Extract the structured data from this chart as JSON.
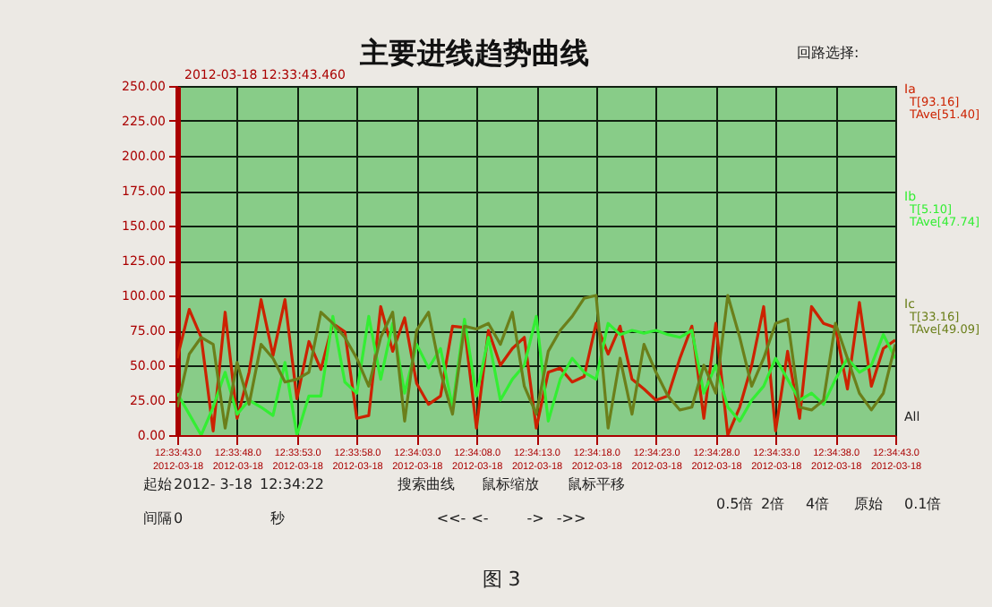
{
  "chart_data": {
    "type": "line",
    "title": "主要进线趋势曲线",
    "x": [
      "2012-03-18T12:33:43",
      "2012-03-18T12:33:44",
      "2012-03-18T12:33:45",
      "2012-03-18T12:33:46",
      "2012-03-18T12:33:47",
      "2012-03-18T12:33:48",
      "2012-03-18T12:33:49",
      "2012-03-18T12:33:50",
      "2012-03-18T12:33:51",
      "2012-03-18T12:33:52",
      "2012-03-18T12:33:53",
      "2012-03-18T12:33:54",
      "2012-03-18T12:33:55",
      "2012-03-18T12:33:56",
      "2012-03-18T12:33:57",
      "2012-03-18T12:33:58",
      "2012-03-18T12:33:59",
      "2012-03-18T12:34:00",
      "2012-03-18T12:34:01",
      "2012-03-18T12:34:02",
      "2012-03-18T12:34:03",
      "2012-03-18T12:34:04",
      "2012-03-18T12:34:05",
      "2012-03-18T12:34:06",
      "2012-03-18T12:34:07",
      "2012-03-18T12:34:08",
      "2012-03-18T12:34:09",
      "2012-03-18T12:34:10",
      "2012-03-18T12:34:11",
      "2012-03-18T12:34:12",
      "2012-03-18T12:34:13",
      "2012-03-18T12:34:14",
      "2012-03-18T12:34:15",
      "2012-03-18T12:34:16",
      "2012-03-18T12:34:17",
      "2012-03-18T12:34:18",
      "2012-03-18T12:34:19",
      "2012-03-18T12:34:20",
      "2012-03-18T12:34:21",
      "2012-03-18T12:34:22",
      "2012-03-18T12:34:23",
      "2012-03-18T12:34:24",
      "2012-03-18T12:34:25",
      "2012-03-18T12:34:26",
      "2012-03-18T12:34:27",
      "2012-03-18T12:34:28",
      "2012-03-18T12:34:29",
      "2012-03-18T12:34:30",
      "2012-03-18T12:34:31",
      "2012-03-18T12:34:32",
      "2012-03-18T12:34:33",
      "2012-03-18T12:34:34",
      "2012-03-18T12:34:35",
      "2012-03-18T12:34:36",
      "2012-03-18T12:34:37",
      "2012-03-18T12:34:38",
      "2012-03-18T12:34:39",
      "2012-03-18T12:34:40",
      "2012-03-18T12:34:41",
      "2012-03-18T12:34:42",
      "2012-03-18T12:34:43"
    ],
    "series": [
      {
        "name": "Ia",
        "color": "#cc2200",
        "values": [
          55,
          90,
          70,
          3,
          88,
          12,
          45,
          97,
          57,
          97,
          26,
          67,
          47,
          80,
          74,
          12,
          14,
          92,
          60,
          84,
          37,
          22,
          28,
          78,
          77,
          5,
          75,
          50,
          62,
          70,
          5,
          45,
          48,
          38,
          42,
          80,
          58,
          78,
          40,
          33,
          25,
          28,
          55,
          78,
          12,
          80,
          0,
          20,
          50,
          92,
          3,
          60,
          12,
          92,
          80,
          77,
          33,
          95,
          35,
          62,
          68
        ]
      },
      {
        "name": "Ib",
        "color": "#33ee33",
        "values": [
          30,
          15,
          0,
          20,
          45,
          15,
          25,
          20,
          14,
          52,
          0,
          28,
          28,
          85,
          38,
          30,
          85,
          40,
          80,
          30,
          65,
          48,
          62,
          20,
          83,
          28,
          70,
          25,
          40,
          50,
          85,
          10,
          40,
          55,
          45,
          40,
          80,
          72,
          75,
          73,
          75,
          72,
          70,
          75,
          30,
          50,
          20,
          10,
          25,
          35,
          55,
          40,
          25,
          30,
          22,
          40,
          55,
          45,
          50,
          72,
          55
        ]
      },
      {
        "name": "Ic",
        "color": "#6b7f1a",
        "values": [
          20,
          58,
          70,
          65,
          5,
          52,
          22,
          65,
          55,
          38,
          40,
          45,
          88,
          80,
          70,
          55,
          35,
          70,
          88,
          10,
          75,
          88,
          45,
          15,
          78,
          76,
          80,
          65,
          88,
          35,
          15,
          60,
          75,
          85,
          98,
          100,
          5,
          55,
          15,
          65,
          45,
          28,
          18,
          20,
          50,
          30,
          100,
          70,
          35,
          55,
          80,
          83,
          20,
          18,
          25,
          80,
          55,
          30,
          18,
          30,
          65
        ]
      }
    ],
    "xlim": [
      "2012-03-18T12:33:43",
      "2012-03-18T12:34:43"
    ],
    "xticks": [
      {
        "value": "2012-03-18T12:33:43",
        "label": "12:33:43.0\n2012-03-18"
      },
      {
        "value": "2012-03-18T12:33:48",
        "label": "12:33:48.0\n2012-03-18"
      },
      {
        "value": "2012-03-18T12:33:53",
        "label": "12:33:53.0\n2012-03-18"
      },
      {
        "value": "2012-03-18T12:33:58",
        "label": "12:33:58.0\n2012-03-18"
      },
      {
        "value": "2012-03-18T12:34:03",
        "label": "12:34:03.0\n2012-03-18"
      },
      {
        "value": "2012-03-18T12:34:08",
        "label": "12:34:08.0\n2012-03-18"
      },
      {
        "value": "2012-03-18T12:34:13",
        "label": "12:34:13.0\n2012-03-18"
      },
      {
        "value": "2012-03-18T12:34:18",
        "label": "12:34:18.0\n2012-03-18"
      },
      {
        "value": "2012-03-18T12:34:23",
        "label": "12:34:23.0\n2012-03-18"
      },
      {
        "value": "2012-03-18T12:34:28",
        "label": "12:34:28.0\n2012-03-18"
      },
      {
        "value": "2012-03-18T12:34:33",
        "label": "12:34:33.0\n2012-03-18"
      },
      {
        "value": "2012-03-18T12:34:38",
        "label": "12:34:38.0\n2012-03-18"
      },
      {
        "value": "2012-03-18T12:34:43",
        "label": "12:34:43.0\n2012-03-18"
      }
    ],
    "ylim": [
      0,
      250
    ],
    "yticks": [
      {
        "value": 0,
        "label": "0.00"
      },
      {
        "value": 25,
        "label": "25.00"
      },
      {
        "value": 50,
        "label": "50.00"
      },
      {
        "value": 75,
        "label": "75.00"
      },
      {
        "value": 100,
        "label": "100.00"
      },
      {
        "value": 125,
        "label": "125.00"
      },
      {
        "value": 150,
        "label": "150.00"
      },
      {
        "value": 175,
        "label": "175.00"
      },
      {
        "value": 200,
        "label": "200.00"
      },
      {
        "value": 225,
        "label": "225.00"
      },
      {
        "value": 250,
        "label": "250.00"
      }
    ],
    "grid": true,
    "legend": "right",
    "marker": "none",
    "line_style": "solid",
    "annotations": [
      "2012-03-18 12:33:43.460",
      "T[93.16] TAve[51.40]",
      "T[5.10] TAve[47.74]",
      "T[33.16] TAve[49.09]",
      "All",
      "回路选择:",
      "起始",
      "2012- 3-18",
      "12:34:22",
      "搜索曲线",
      "鼠标缩放",
      "鼠标平移",
      "间隔",
      "0",
      "秒",
      "<<-",
      "<-",
      "->",
      "->>",
      "0.5倍",
      "2倍",
      "4倍",
      "原始",
      "0.1倍",
      "图 3"
    ]
  }
}
